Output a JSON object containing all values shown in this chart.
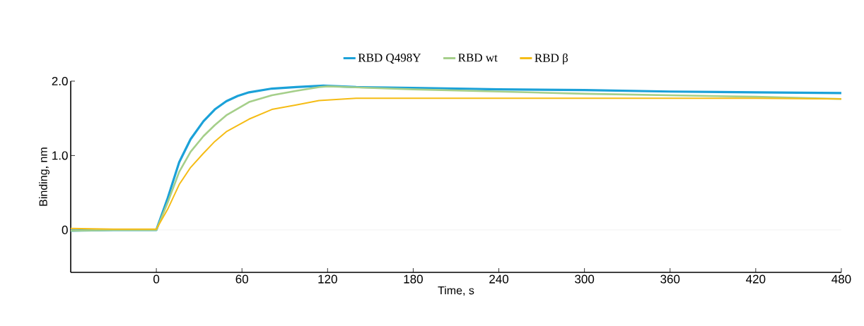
{
  "chart_data": {
    "type": "line",
    "xlabel": "Time, s",
    "ylabel": "Binding, nm",
    "xlim": [
      -60,
      480
    ],
    "ylim": [
      -0.57,
      2.0
    ],
    "xticks": [
      0,
      60,
      120,
      180,
      240,
      300,
      360,
      420,
      480
    ],
    "yticks": [
      0,
      {
        "value": 1,
        "label": "1.0"
      },
      {
        "value": 2,
        "label": "2.0"
      }
    ],
    "legend": "top",
    "marker": "none",
    "line_style": "solid",
    "grid": false,
    "ref_lines": [
      {
        "axis": "y",
        "value": 0,
        "color": "#eeeeee"
      }
    ],
    "series": [
      {
        "name": "RBD Q498Y",
        "color": "#1ba1d8",
        "x": [
          -60,
          -30,
          0,
          8,
          16,
          24,
          33,
          41,
          49,
          57,
          65,
          81,
          98,
          117,
          140,
          180,
          240,
          300,
          360,
          420,
          480
        ],
        "values": [
          -0.01,
          0.0,
          0.0,
          0.43,
          0.91,
          1.22,
          1.46,
          1.62,
          1.73,
          1.8,
          1.85,
          1.9,
          1.92,
          1.94,
          1.92,
          1.91,
          1.89,
          1.88,
          1.86,
          1.85,
          1.84
        ]
      },
      {
        "name": "RBD wt",
        "color": "#a5cf8a",
        "x": [
          -60,
          -30,
          0,
          8,
          16,
          24,
          33,
          41,
          49,
          65,
          81,
          98,
          114,
          120,
          180,
          240,
          300,
          360,
          420,
          480
        ],
        "values": [
          -0.01,
          0.0,
          0.0,
          0.37,
          0.78,
          1.05,
          1.26,
          1.41,
          1.54,
          1.72,
          1.81,
          1.87,
          1.92,
          1.93,
          1.89,
          1.86,
          1.83,
          1.81,
          1.79,
          1.76
        ]
      },
      {
        "name": "RBD β",
        "color": "#f5bc15",
        "x": [
          -60,
          -30,
          0,
          8,
          16,
          24,
          33,
          41,
          49,
          65,
          81,
          98,
          114,
          140,
          180,
          240,
          300,
          360,
          420,
          480
        ],
        "values": [
          0.02,
          0.01,
          0.01,
          0.28,
          0.61,
          0.84,
          1.03,
          1.19,
          1.32,
          1.49,
          1.62,
          1.68,
          1.74,
          1.77,
          1.77,
          1.77,
          1.77,
          1.77,
          1.77,
          1.76
        ]
      }
    ]
  }
}
